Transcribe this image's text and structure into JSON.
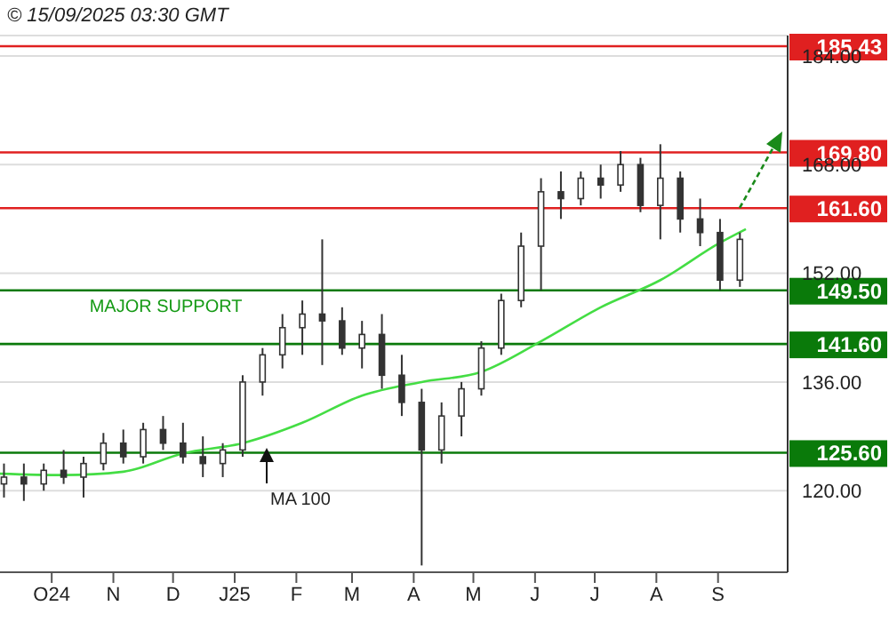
{
  "chart_data": {
    "type": "candlestick",
    "title": "© 15/09/2025 03:30 GMT",
    "x": [
      "2024-09-07",
      "2024-09-17",
      "2024-09-27",
      "2024-10-07",
      "2024-10-17",
      "2024-10-27",
      "2024-11-06",
      "2024-11-16",
      "2024-11-26",
      "2024-12-06",
      "2024-12-16",
      "2024-12-26",
      "2025-01-05",
      "2025-01-15",
      "2025-01-25",
      "2025-02-04",
      "2025-02-14",
      "2025-02-24",
      "2025-03-06",
      "2025-03-16",
      "2025-03-26",
      "2025-04-05",
      "2025-04-15",
      "2025-04-25",
      "2025-05-05",
      "2025-05-15",
      "2025-05-25",
      "2025-06-04",
      "2025-06-14",
      "2025-06-24",
      "2025-07-04",
      "2025-07-14",
      "2025-07-24",
      "2025-08-03",
      "2025-08-13",
      "2025-08-23",
      "2025-09-02",
      "2025-09-12"
    ],
    "ohlc": [
      [
        121,
        124,
        119,
        122
      ],
      [
        122,
        124,
        118.5,
        121
      ],
      [
        121,
        124,
        120,
        123
      ],
      [
        123,
        126,
        121,
        122
      ],
      [
        122,
        125,
        119,
        124
      ],
      [
        124,
        128.5,
        123,
        127
      ],
      [
        127,
        129,
        124,
        125
      ],
      [
        125,
        130,
        124,
        129
      ],
      [
        129,
        131,
        126,
        127
      ],
      [
        127,
        130,
        124,
        125
      ],
      [
        125,
        128,
        122,
        124
      ],
      [
        124,
        127,
        122,
        126
      ],
      [
        126,
        137,
        125,
        136
      ],
      [
        136,
        141,
        134,
        140
      ],
      [
        140,
        146,
        138,
        144
      ],
      [
        144,
        148,
        140,
        146
      ],
      [
        146,
        157,
        138.5,
        145
      ],
      [
        145,
        147,
        140,
        141
      ],
      [
        141,
        145,
        138,
        143
      ],
      [
        143,
        146,
        135,
        137
      ],
      [
        137,
        140,
        131,
        133
      ],
      [
        133,
        135,
        109,
        126
      ],
      [
        126,
        133,
        124,
        131
      ],
      [
        131,
        136,
        128,
        135
      ],
      [
        135,
        142,
        134,
        141
      ],
      [
        141,
        149,
        140,
        148
      ],
      [
        148,
        158,
        147,
        156
      ],
      [
        156,
        166,
        149.5,
        164
      ],
      [
        164,
        167,
        160,
        163
      ],
      [
        163,
        167,
        162,
        166
      ],
      [
        166,
        168,
        163,
        165
      ],
      [
        165,
        170,
        164,
        168
      ],
      [
        168,
        169,
        161,
        162
      ],
      [
        162,
        171,
        157,
        166
      ],
      [
        166,
        167,
        158,
        160
      ],
      [
        160,
        163,
        156,
        158
      ],
      [
        158,
        160,
        149.5,
        151
      ],
      [
        151,
        158,
        150,
        157
      ]
    ],
    "color": "#333333",
    "series": [
      {
        "type": "line",
        "name": "MA 100",
        "color": "#44dd44",
        "x": [
          "2024-09-05",
          "2024-10-07",
          "2024-11-06",
          "2024-12-06",
          "2025-01-05",
          "2025-02-04",
          "2025-03-06",
          "2025-04-05",
          "2025-05-05",
          "2025-06-04",
          "2025-07-04",
          "2025-08-03",
          "2025-09-02",
          "2025-09-15"
        ],
        "values": [
          122.5,
          122.3,
          122.8,
          125.5,
          127,
          130,
          134,
          136,
          137.5,
          142,
          147,
          151,
          156.5,
          158.5
        ]
      }
    ],
    "xlim": [
      "2024-09-05",
      "2025-10-06"
    ],
    "xticks": [
      {
        "value": "2024-10-01",
        "label": "O24"
      },
      {
        "value": "2024-11-01",
        "label": "N"
      },
      {
        "value": "2024-12-01",
        "label": "D"
      },
      {
        "value": "2025-01-01",
        "label": "J25"
      },
      {
        "value": "2025-02-01",
        "label": "F"
      },
      {
        "value": "2025-03-01",
        "label": "M"
      },
      {
        "value": "2025-04-01",
        "label": "A"
      },
      {
        "value": "2025-05-01",
        "label": "M"
      },
      {
        "value": "2025-06-01",
        "label": "J"
      },
      {
        "value": "2025-07-01",
        "label": "J"
      },
      {
        "value": "2025-08-01",
        "label": "A"
      },
      {
        "value": "2025-09-01",
        "label": "S"
      }
    ],
    "ylim": [
      108,
      187
    ],
    "yticks": [
      {
        "value": 120,
        "label": "120.00"
      },
      {
        "value": 136,
        "label": "136.00"
      },
      {
        "value": 152,
        "label": "152.00"
      },
      {
        "value": 168,
        "label": "168.00"
      },
      {
        "value": 184,
        "label": "184.00"
      }
    ],
    "grid": "y",
    "ref_lines": [
      {
        "axis": "y",
        "value": 185.43,
        "label": "185.43",
        "color": "#e02020"
      },
      {
        "axis": "y",
        "value": 169.8,
        "label": "169.80",
        "color": "#e02020"
      },
      {
        "axis": "y",
        "value": 161.6,
        "label": "161.60",
        "color": "#e02020"
      },
      {
        "axis": "y",
        "value": 149.5,
        "label": "149.50",
        "color": "#0a7a0a"
      },
      {
        "axis": "y",
        "value": 141.6,
        "label": "141.60",
        "color": "#0a7a0a"
      },
      {
        "axis": "y",
        "value": 125.6,
        "label": "125.60",
        "color": "#0a7a0a"
      }
    ],
    "annotations": [
      {
        "text": "MAJOR SUPPORT",
        "x": "2024-10-20",
        "y": 149.5
      }
    ]
  }
}
